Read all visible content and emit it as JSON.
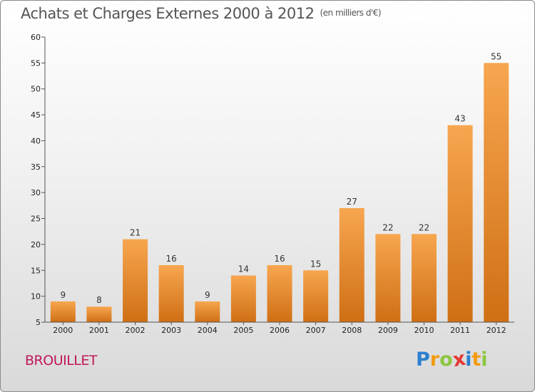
{
  "header": {
    "title": "Achats et Charges Externes 2000 à 2012",
    "unit": "(en milliers d'€)"
  },
  "commune": "BROUILLET",
  "logo": {
    "letters": [
      "P",
      "r",
      "o",
      "x",
      "i",
      "t",
      "i"
    ],
    "colors": [
      "#2a7fd0",
      "#f39c12",
      "#8cc63f",
      "#e53935",
      "#2a7fd0",
      "#f39c12",
      "#8cc63f"
    ]
  },
  "colors": {
    "bar_light": "#f7a650",
    "bar_dark": "#cf6f14",
    "axis": "#555555"
  },
  "chart_data": {
    "type": "bar",
    "categories": [
      "2000",
      "2001",
      "2002",
      "2003",
      "2004",
      "2005",
      "2006",
      "2007",
      "2008",
      "2009",
      "2010",
      "2011",
      "2012"
    ],
    "values": [
      9,
      8,
      21,
      16,
      9,
      14,
      16,
      15,
      27,
      22,
      22,
      43,
      55
    ],
    "ylim": [
      5,
      60
    ],
    "yticks": [
      5,
      10,
      15,
      20,
      25,
      30,
      35,
      40,
      45,
      50,
      55,
      60
    ],
    "grid": false
  }
}
